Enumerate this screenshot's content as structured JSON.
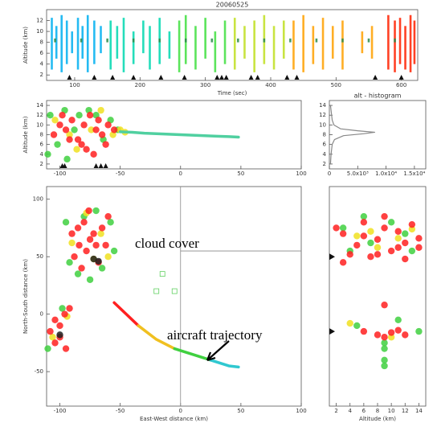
{
  "chart_data": [
    {
      "type": "strip",
      "title": "20060525",
      "xlabel": "Time (sec)",
      "ylabel": "Altitude (km)",
      "xlim": [
        57,
        625
      ],
      "ylim": [
        1,
        14
      ],
      "xticks": [
        100,
        200,
        300,
        400,
        500,
        600
      ],
      "yticks": [
        2,
        4,
        6,
        8,
        10,
        12
      ],
      "series": [
        {
          "color": "#00b0f0",
          "x": [
            65,
            72,
            80,
            88,
            96,
            105,
            112,
            120,
            130,
            140
          ],
          "low": [
            3,
            5,
            2.5,
            4,
            6,
            3,
            5,
            2.5,
            4,
            6
          ],
          "high": [
            12.5,
            11,
            13,
            12,
            10,
            12.5,
            11,
            13,
            12,
            11
          ]
        },
        {
          "color": "#00d8b0",
          "x": [
            155,
            165,
            175,
            190,
            205,
            215,
            230,
            245
          ],
          "low": [
            3,
            5,
            2.5,
            4,
            6,
            3,
            4,
            5
          ],
          "high": [
            12,
            11,
            12.5,
            10,
            12,
            11,
            12.5,
            10
          ]
        },
        {
          "color": "#40e040",
          "x": [
            260,
            270,
            285,
            300,
            315,
            330
          ],
          "low": [
            2.5,
            4,
            3,
            5,
            2.5,
            4
          ],
          "high": [
            12,
            13,
            11,
            12.5,
            10,
            12
          ]
        },
        {
          "color": "#c0e020",
          "x": [
            345,
            360,
            375,
            390,
            405,
            420
          ],
          "low": [
            3,
            5,
            2.5,
            4,
            3,
            5
          ],
          "high": [
            12.5,
            11,
            12,
            13,
            11,
            12
          ]
        },
        {
          "color": "#ffa000",
          "x": [
            435,
            450,
            465,
            480,
            495,
            510,
            540,
            555
          ],
          "low": [
            3,
            2.5,
            4,
            3,
            5,
            3,
            6,
            5
          ],
          "high": [
            12,
            13,
            11,
            12.5,
            11,
            12,
            10,
            11
          ]
        },
        {
          "color": "#ff2000",
          "x": [
            580,
            590,
            598,
            606,
            614,
            620
          ],
          "low": [
            3,
            2.5,
            4,
            3,
            2.5,
            4
          ],
          "high": [
            13,
            12,
            12.5,
            11,
            13,
            12
          ]
        },
        {
          "color": "#2a8a4a",
          "x": [
            70,
            110,
            150,
            190,
            230,
            270,
            310,
            350,
            390,
            430,
            470,
            510,
            550,
            590
          ],
          "low": [
            8,
            8,
            8,
            8,
            8,
            8,
            8,
            8,
            8,
            8,
            8,
            8,
            8,
            8
          ],
          "high": [
            8.7,
            8.7,
            8.7,
            8.7,
            8.7,
            8.7,
            8.7,
            8.7,
            8.7,
            8.7,
            8.7,
            8.7,
            8.7,
            8.7
          ]
        }
      ],
      "markers": [
        92,
        130,
        158,
        190,
        232,
        268,
        318,
        325,
        332,
        370,
        380,
        425,
        440,
        560,
        600
      ]
    },
    {
      "type": "scatter",
      "ylabel": "Altitude (km)",
      "xlim": [
        -111,
        100
      ],
      "ylim": [
        1,
        15
      ],
      "xticks": [
        -100,
        -50,
        0,
        50,
        100
      ],
      "yticks": [
        2,
        4,
        6,
        8,
        10,
        12,
        14
      ],
      "series": [
        {
          "color": "#40d040",
          "x": [
            -108,
            -102,
            -96,
            -88,
            -84,
            -76,
            -70,
            -64,
            -58,
            -52,
            -110,
            -94
          ],
          "values": [
            12,
            6,
            13,
            9,
            12,
            13,
            12,
            7,
            11,
            9,
            4,
            3
          ]
        },
        {
          "color": "#f0e020",
          "x": [
            -104,
            -92,
            -86,
            -74,
            -66,
            -56,
            -50,
            -46
          ],
          "values": [
            11,
            8,
            5,
            9,
            13,
            8,
            9,
            8.5
          ]
        },
        {
          "color": "#ff2020",
          "x": [
            -105,
            -100,
            -95,
            -90,
            -85,
            -80,
            -75,
            -70,
            -65,
            -60,
            -55,
            -78,
            -72,
            -82,
            -98,
            -92,
            -68,
            -62
          ],
          "values": [
            8,
            10,
            9,
            11,
            7,
            10,
            12,
            9,
            8,
            10,
            9,
            5,
            4,
            6,
            12,
            7,
            11,
            6
          ]
        },
        {
          "color": "#50d0a0",
          "mode": "line",
          "x": [
            -50,
            -40,
            -30,
            -20,
            -10,
            0,
            10,
            20,
            30,
            40,
            48
          ],
          "values": [
            8.6,
            8.5,
            8.3,
            8.2,
            8.1,
            8,
            7.9,
            7.8,
            7.7,
            7.6,
            7.5
          ]
        }
      ],
      "markers": [
        -98,
        -96,
        -70,
        -66,
        -62
      ]
    },
    {
      "type": "line",
      "title": "alt - histogram",
      "xlim": [
        0,
        17000
      ],
      "ylim": [
        1,
        15
      ],
      "xticks": [
        0,
        {
          "value": 5000,
          "label": "5.0x10³"
        },
        {
          "value": 10000,
          "label": "1.0x10⁴"
        },
        {
          "value": 15000,
          "label": "1.5x10⁴"
        }
      ],
      "yticks": [
        2,
        4,
        6,
        8,
        10,
        12,
        14
      ],
      "series": [
        {
          "color": "#888888",
          "x": [
            200,
            300,
            500,
            900,
            2500,
            6000,
            8000,
            5000,
            2000,
            800,
            500,
            400,
            300,
            200
          ],
          "values": [
            2,
            4,
            6,
            7,
            7.8,
            8.2,
            8.5,
            8.8,
            9.2,
            10,
            11,
            12,
            13,
            14
          ]
        }
      ]
    },
    {
      "type": "scatter",
      "xlabel": "East-West distance (km)",
      "ylabel": "North-South distance (km)",
      "xlim": [
        -111,
        100
      ],
      "ylim": [
        -80,
        111
      ],
      "xticks": [
        -100,
        -50,
        0,
        50,
        100
      ],
      "yticks": [
        -50,
        0,
        50,
        100
      ],
      "crosshair": {
        "x": 0,
        "y": 55
      },
      "series": [
        {
          "color": "#40d040",
          "x": [
            -95,
            -92,
            -80,
            -70,
            -58,
            -55,
            -85,
            -75,
            -65,
            -110,
            -98
          ],
          "values": [
            80,
            45,
            85,
            90,
            80,
            55,
            35,
            30,
            40,
            -30,
            5
          ]
        },
        {
          "color": "#f0e020",
          "x": [
            -90,
            -78,
            -66,
            -60,
            -72,
            -106,
            -94
          ],
          "values": [
            62,
            88,
            70,
            50,
            48,
            -20,
            -2
          ]
        },
        {
          "color": "#ff2020",
          "x": [
            -90,
            -85,
            -80,
            -75,
            -70,
            -65,
            -60,
            -88,
            -78,
            -68,
            -82,
            -72,
            -62,
            -76,
            -84,
            -108,
            -104,
            -100,
            -96,
            -92,
            -100,
            -95,
            -104
          ],
          "values": [
            70,
            75,
            80,
            65,
            60,
            75,
            85,
            50,
            55,
            45,
            40,
            70,
            60,
            90,
            60,
            -15,
            -5,
            -20,
            0,
            5,
            -10,
            -30,
            -25
          ]
        },
        {
          "color": "#202020",
          "x": [
            -72,
            -68,
            -100
          ],
          "values": [
            48,
            46,
            -18
          ]
        },
        {
          "color": "#ff2020",
          "mode": "line",
          "x": [
            -55,
            -45,
            -35
          ],
          "values": [
            10,
            0,
            -10
          ]
        },
        {
          "color": "#f0c020",
          "mode": "line",
          "x": [
            -35,
            -20,
            -5
          ],
          "values": [
            -10,
            -22,
            -30
          ]
        },
        {
          "color": "#40d040",
          "mode": "line",
          "x": [
            -5,
            10,
            25
          ],
          "values": [
            -30,
            -35,
            -40
          ]
        },
        {
          "color": "#30c8d0",
          "mode": "line",
          "x": [
            25,
            40,
            48
          ],
          "values": [
            -40,
            -45,
            -46
          ]
        },
        {
          "color": "#60d060",
          "mode": "square",
          "x": [
            -20,
            -5,
            -15
          ],
          "values": [
            20,
            20,
            35
          ]
        }
      ],
      "annotations": [
        "cloud cover",
        "aircraft trajectory"
      ]
    },
    {
      "type": "scatter",
      "xlabel": "Altitude (km)",
      "xlim": [
        1,
        15
      ],
      "ylim": [
        -80,
        111
      ],
      "xticks": [
        2,
        4,
        6,
        8,
        10,
        12,
        14
      ],
      "series": [
        {
          "color": "#40d040",
          "x": [
            3,
            4,
            6,
            7,
            10,
            12,
            13,
            5,
            9,
            11,
            14,
            9,
            9,
            9
          ],
          "values": [
            75,
            55,
            85,
            62,
            80,
            70,
            55,
            -10,
            -25,
            -5,
            -15,
            -30,
            -40,
            -45
          ]
        },
        {
          "color": "#f0e020",
          "x": [
            5,
            7,
            8,
            11,
            13,
            4,
            10
          ],
          "values": [
            68,
            72,
            58,
            66,
            74,
            -8,
            -20
          ]
        },
        {
          "color": "#ff2020",
          "x": [
            2,
            3,
            5,
            6,
            8,
            9,
            10,
            11,
            12,
            13,
            14,
            4,
            7,
            3,
            6,
            9,
            12,
            14,
            11,
            8,
            6,
            8,
            9,
            10,
            11,
            12,
            9
          ],
          "values": [
            75,
            70,
            60,
            80,
            65,
            75,
            55,
            72,
            62,
            78,
            58,
            52,
            50,
            45,
            68,
            85,
            48,
            66,
            58,
            52,
            -15,
            -18,
            -20,
            -16,
            -14,
            -18,
            8
          ]
        }
      ],
      "ymarkers": [
        50,
        -15
      ]
    }
  ]
}
